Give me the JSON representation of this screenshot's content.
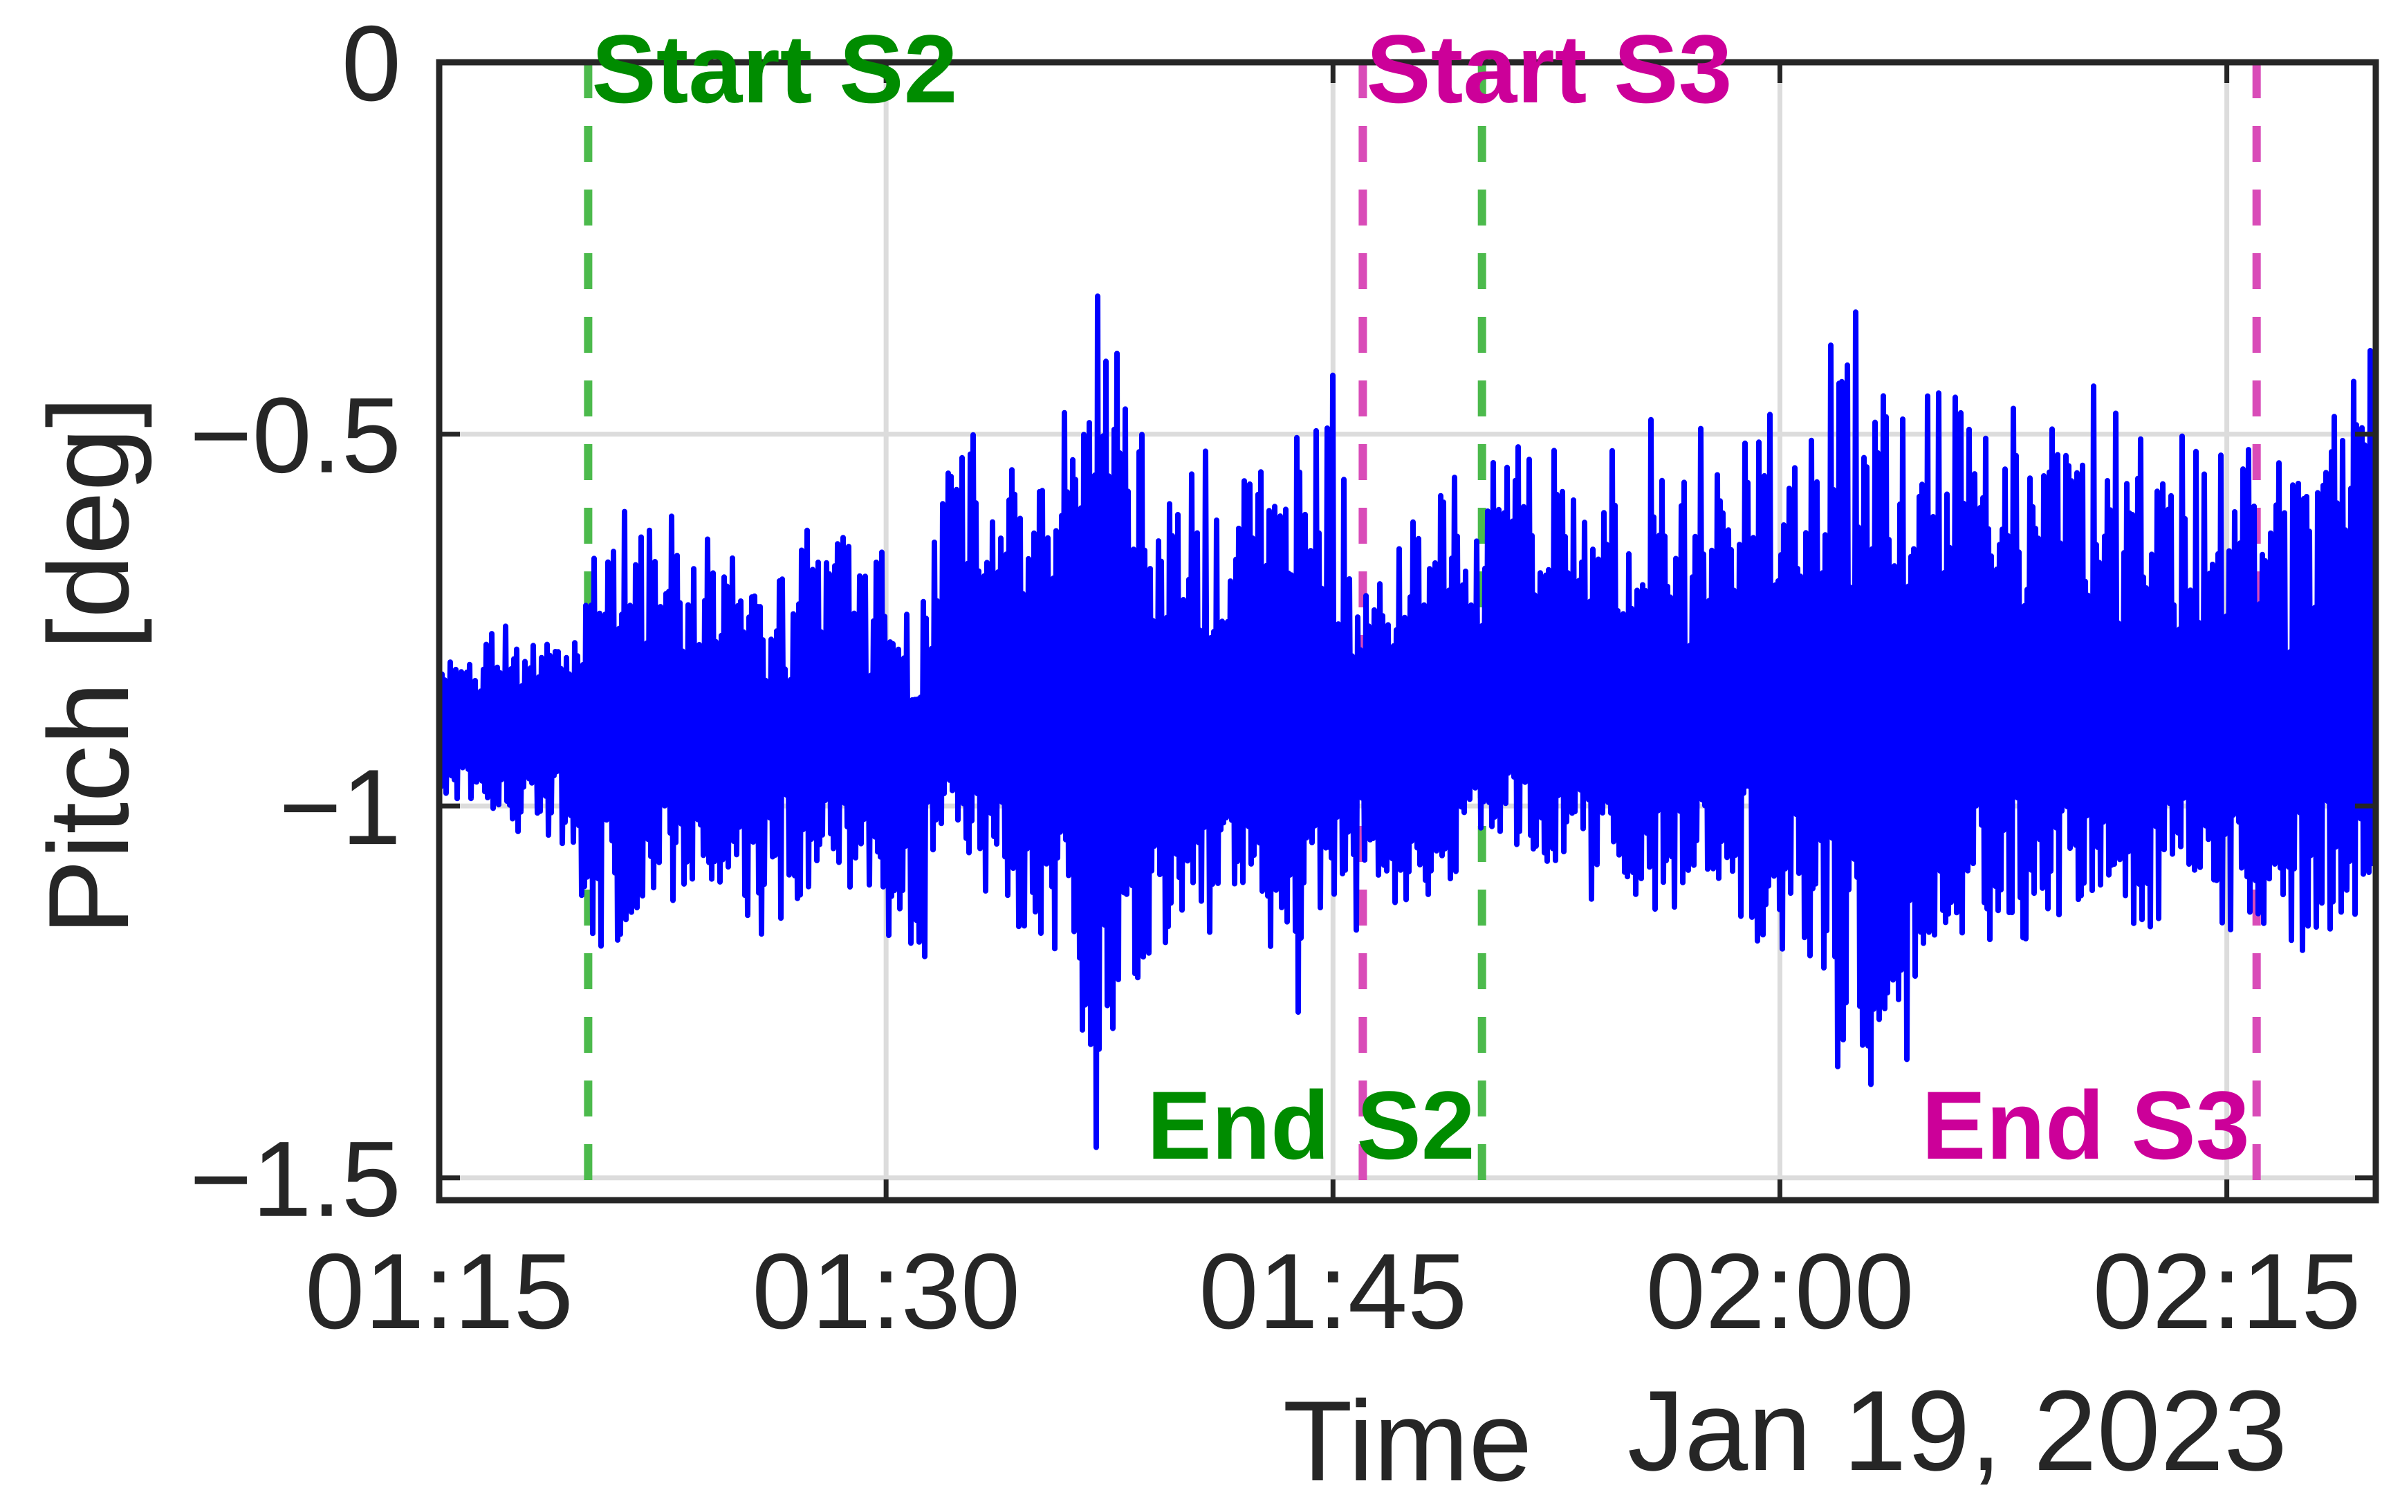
{
  "chart_data": {
    "type": "line",
    "title": "",
    "xlabel": "Time",
    "xlabel_secondary": "Jan 19, 2023",
    "ylabel": "Pitch [deg]",
    "xlim": [
      "01:15",
      "02:20"
    ],
    "ylim": [
      -1.53,
      0
    ],
    "grid": true,
    "x_ticks": [
      "01:15",
      "01:30",
      "01:45",
      "02:00",
      "02:15"
    ],
    "y_ticks": [
      {
        "value": 0,
        "label": "0"
      },
      {
        "value": -0.5,
        "label": "−0.5"
      },
      {
        "value": -1,
        "label": "−1"
      },
      {
        "value": -1.5,
        "label": "−1.5"
      }
    ],
    "series": [
      {
        "color": "#0000ff",
        "x": [
          "01:15",
          "01:17",
          "01:19",
          "01:20",
          "01:22",
          "01:24",
          "01:26",
          "01:28",
          "01:30",
          "01:31",
          "01:32",
          "01:34",
          "01:36",
          "01:37",
          "01:38",
          "01:40",
          "01:42",
          "01:44",
          "01:45",
          "01:46",
          "01:47",
          "01:49",
          "01:50",
          "01:52",
          "01:55",
          "02:00",
          "02:03",
          "02:06",
          "02:10",
          "02:13",
          "02:16",
          "02:18",
          "02:20"
        ],
        "upper": [
          -0.78,
          -0.76,
          -0.74,
          -0.68,
          -0.55,
          -0.62,
          -0.68,
          -0.6,
          -0.65,
          -0.78,
          -0.45,
          -0.55,
          -0.45,
          -0.23,
          -0.35,
          -0.5,
          -0.55,
          -0.45,
          -0.42,
          -0.72,
          -0.65,
          -0.55,
          -0.52,
          -0.5,
          -0.48,
          -0.46,
          -0.3,
          -0.45,
          -0.42,
          -0.48,
          -0.52,
          -0.45,
          -0.32
        ],
        "lower": [
          -1.02,
          -1.03,
          -1.05,
          -1.18,
          -1.25,
          -1.15,
          -1.2,
          -1.12,
          -1.18,
          -1.33,
          -1.05,
          -1.15,
          -1.3,
          -1.53,
          -1.4,
          -1.2,
          -1.18,
          -1.3,
          -1.12,
          -1.2,
          -1.15,
          -1.1,
          -1.05,
          -1.12,
          -1.15,
          -1.2,
          -1.45,
          -1.2,
          -1.22,
          -1.15,
          -1.18,
          -1.2,
          -1.15
        ],
        "center": -0.9
      }
    ],
    "events": [
      {
        "time": "01:20",
        "label": "Start S2",
        "color": "#008c00",
        "line_color": "#4cba4c",
        "label_position": "top"
      },
      {
        "time": "01:50",
        "label": "End S2",
        "color": "#008c00",
        "line_color": "#4cba4c",
        "label_position": "bottom"
      },
      {
        "time": "01:46",
        "label": "Start S3",
        "color": "#cc0099",
        "line_color": "#d94cb8",
        "label_position": "top"
      },
      {
        "time": "02:16",
        "label": "End S3",
        "color": "#cc0099",
        "line_color": "#d94cb8",
        "label_position": "bottom"
      }
    ]
  }
}
